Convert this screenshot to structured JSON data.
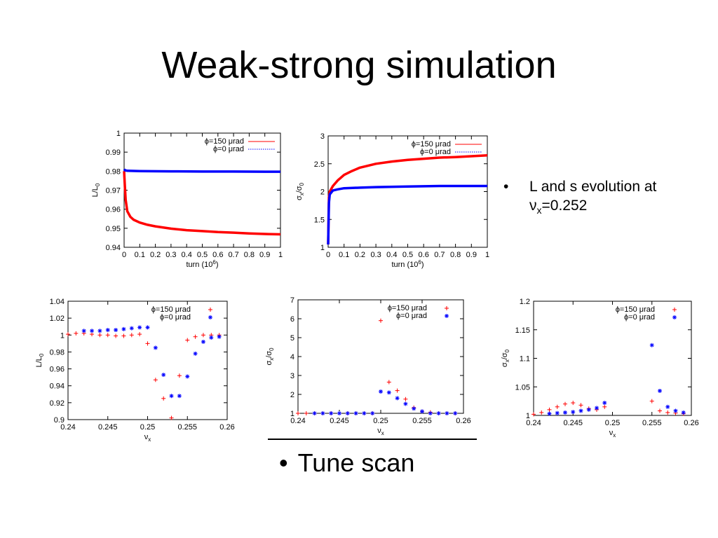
{
  "title": "Weak-strong simulation",
  "bullets": {
    "evolution_prefix": "L and s evolution at ",
    "evolution_nu": "ν",
    "evolution_sub": "x",
    "evolution_value": "=0.252",
    "tune_scan": "Tune scan"
  },
  "chart_data": [
    {
      "type": "line",
      "xlabel": "turn (10",
      "xlabel_sup": "6",
      "xlabel_end": ")",
      "ylabel": "L/L",
      "ylabel_sub": "0",
      "xlim": [
        0,
        1
      ],
      "ylim": [
        0.94,
        1
      ],
      "xticks": [
        "0",
        "0.1",
        "0.2",
        "0.3",
        "0.4",
        "0.5",
        "0.6",
        "0.7",
        "0.8",
        "0.9",
        "1"
      ],
      "yticks": [
        "0.94",
        "0.95",
        "0.96",
        "0.97",
        "0.98",
        "0.99",
        "1"
      ],
      "legend_placement": "top-right",
      "series": [
        {
          "name": "ϕ=150 μrad",
          "color": "#ff0000",
          "style": "solid",
          "x": [
            0,
            0.005,
            0.01,
            0.02,
            0.04,
            0.06,
            0.1,
            0.15,
            0.2,
            0.3,
            0.4,
            0.5,
            0.6,
            0.7,
            0.8,
            0.9,
            1.0
          ],
          "y": [
            0.98,
            0.972,
            0.965,
            0.959,
            0.956,
            0.9545,
            0.953,
            0.9518,
            0.951,
            0.9498,
            0.949,
            0.9485,
            0.948,
            0.9477,
            0.9473,
            0.947,
            0.9468
          ]
        },
        {
          "name": "ϕ=0 μrad",
          "color": "#0000ff",
          "style": "dotted",
          "x": [
            0,
            0.005,
            0.02,
            0.1,
            0.3,
            0.5,
            0.7,
            0.9,
            1.0
          ],
          "y": [
            0.981,
            0.9805,
            0.9802,
            0.98,
            0.9799,
            0.9798,
            0.9798,
            0.9797,
            0.9797
          ]
        }
      ]
    },
    {
      "type": "line",
      "xlabel": "turn (10",
      "xlabel_sup": "6",
      "xlabel_end": ")",
      "ylabel": "σ",
      "ylabel_sub1": "x",
      "ylabel_mid": "/σ",
      "ylabel_sub2": "0",
      "xlim": [
        0,
        1
      ],
      "ylim": [
        1,
        3
      ],
      "xticks": [
        "0",
        "0.1",
        "0.2",
        "0.3",
        "0.4",
        "0.5",
        "0.6",
        "0.7",
        "0.8",
        "0.9",
        "1"
      ],
      "yticks": [
        "1",
        "1.5",
        "2",
        "2.5",
        "3"
      ],
      "legend_placement": "top-right",
      "series": [
        {
          "name": "ϕ=150 μrad",
          "color": "#ff0000",
          "style": "solid",
          "x": [
            0,
            0.005,
            0.01,
            0.03,
            0.06,
            0.1,
            0.15,
            0.2,
            0.3,
            0.4,
            0.5,
            0.6,
            0.7,
            0.8,
            0.9,
            1.0
          ],
          "y": [
            1.05,
            1.9,
            2.0,
            2.1,
            2.2,
            2.3,
            2.37,
            2.43,
            2.5,
            2.54,
            2.57,
            2.59,
            2.61,
            2.62,
            2.635,
            2.65
          ]
        },
        {
          "name": "ϕ=0 μrad",
          "color": "#0000ff",
          "style": "dotted",
          "x": [
            0,
            0.005,
            0.01,
            0.03,
            0.06,
            0.1,
            0.2,
            0.3,
            0.5,
            0.7,
            0.9,
            1.0
          ],
          "y": [
            1.05,
            1.8,
            1.95,
            2.02,
            2.04,
            2.06,
            2.07,
            2.08,
            2.09,
            2.1,
            2.1,
            2.1
          ]
        }
      ]
    },
    {
      "type": "scatter",
      "xlabel": "ν",
      "xlabel_sub": "x",
      "ylabel": "L/L",
      "ylabel_sub": "0",
      "xlim": [
        0.24,
        0.26
      ],
      "ylim": [
        0.9,
        1.04
      ],
      "xticks": [
        "0.24",
        "0.245",
        "0.25",
        "0.255",
        "0.26"
      ],
      "yticks": [
        "0.9",
        "0.92",
        "0.94",
        "0.96",
        "0.98",
        "1",
        "1.02",
        "1.04"
      ],
      "legend_placement": "top-right",
      "series": [
        {
          "name": "ϕ=150 μrad",
          "color": "#ff0000",
          "marker": "plus",
          "x": [
            0.24,
            0.241,
            0.242,
            0.243,
            0.244,
            0.245,
            0.246,
            0.247,
            0.248,
            0.249,
            0.25,
            0.251,
            0.252,
            0.253,
            0.254,
            0.255,
            0.256,
            0.257,
            0.258,
            0.259
          ],
          "y": [
            1.001,
            1.002,
            1.002,
            1.001,
            1.0,
            1.0,
            0.999,
            0.999,
            1.0,
            1.001,
            0.99,
            0.947,
            0.925,
            0.902,
            0.952,
            0.994,
            0.998,
            1.0,
            1.0,
            1.0
          ]
        },
        {
          "name": "ϕ=0 μrad",
          "color": "#0000ff",
          "marker": "star",
          "x": [
            0.242,
            0.243,
            0.244,
            0.245,
            0.246,
            0.247,
            0.248,
            0.249,
            0.25,
            0.251,
            0.252,
            0.253,
            0.254,
            0.255,
            0.256,
            0.257,
            0.258,
            0.259
          ],
          "y": [
            1.005,
            1.005,
            1.005,
            1.006,
            1.006,
            1.007,
            1.008,
            1.009,
            1.009,
            0.985,
            0.953,
            0.928,
            0.928,
            0.951,
            0.978,
            0.992,
            0.997,
            0.998
          ]
        }
      ]
    },
    {
      "type": "scatter",
      "xlabel": "ν",
      "xlabel_sub": "x",
      "ylabel": "σ",
      "ylabel_sub1": "x",
      "ylabel_mid": "/σ",
      "ylabel_sub2": "0",
      "xlim": [
        0.24,
        0.26
      ],
      "ylim": [
        1,
        7
      ],
      "xticks": [
        "0.24",
        "0.245",
        "0.25",
        "0.255",
        "0.26"
      ],
      "yticks": [
        "1",
        "2",
        "3",
        "4",
        "5",
        "6",
        "7"
      ],
      "legend_placement": "top-right",
      "series": [
        {
          "name": "ϕ=150 μrad",
          "color": "#ff0000",
          "marker": "plus",
          "x": [
            0.24,
            0.241,
            0.242,
            0.243,
            0.244,
            0.245,
            0.246,
            0.247,
            0.248,
            0.249,
            0.25,
            0.251,
            0.252,
            0.253,
            0.254,
            0.255,
            0.256,
            0.257,
            0.258,
            0.259
          ],
          "y": [
            1.0,
            1.0,
            1.0,
            1.0,
            1.0,
            1.0,
            1.0,
            1.0,
            1.0,
            1.0,
            5.9,
            2.65,
            2.2,
            1.75,
            1.3,
            1.1,
            1.05,
            1.0,
            1.0,
            1.0
          ]
        },
        {
          "name": "ϕ=0 μrad",
          "color": "#0000ff",
          "marker": "star",
          "x": [
            0.242,
            0.243,
            0.244,
            0.245,
            0.246,
            0.247,
            0.248,
            0.249,
            0.25,
            0.251,
            0.252,
            0.253,
            0.254,
            0.255,
            0.256,
            0.257,
            0.258,
            0.259
          ],
          "y": [
            1.0,
            1.0,
            1.0,
            1.0,
            1.0,
            1.0,
            1.0,
            1.0,
            2.15,
            2.1,
            1.8,
            1.5,
            1.25,
            1.1,
            1.0,
            1.0,
            1.0,
            1.0
          ]
        }
      ]
    },
    {
      "type": "scatter",
      "xlabel": "ν",
      "xlabel_sub": "x",
      "ylabel": "σ",
      "ylabel_sub1": "x",
      "ylabel_mid": "/σ",
      "ylabel_sub2": "0",
      "xlim": [
        0.24,
        0.26
      ],
      "ylim": [
        1,
        1.2
      ],
      "xticks": [
        "0.24",
        "0.245",
        "0.25",
        "0.255",
        "0.26"
      ],
      "yticks": [
        "1",
        "1.05",
        "1.1",
        "1.15",
        "1.2"
      ],
      "legend_placement": "top-right",
      "series": [
        {
          "name": "ϕ=150 μrad",
          "color": "#ff0000",
          "marker": "plus",
          "x": [
            0.24,
            0.241,
            0.242,
            0.243,
            0.244,
            0.245,
            0.246,
            0.247,
            0.248,
            0.249,
            0.255,
            0.256,
            0.257,
            0.258,
            0.259
          ],
          "y": [
            1.002,
            1.005,
            1.01,
            1.015,
            1.02,
            1.022,
            1.018,
            1.012,
            1.01,
            1.015,
            1.025,
            1.008,
            1.005,
            1.004,
            1.003
          ]
        },
        {
          "name": "ϕ=0 μrad",
          "color": "#0000ff",
          "marker": "star",
          "x": [
            0.242,
            0.243,
            0.244,
            0.245,
            0.246,
            0.247,
            0.248,
            0.249,
            0.255,
            0.256,
            0.257,
            0.258,
            0.259
          ],
          "y": [
            1.003,
            1.004,
            1.005,
            1.006,
            1.008,
            1.01,
            1.013,
            1.022,
            1.123,
            1.043,
            1.015,
            1.008,
            1.005
          ]
        }
      ]
    }
  ]
}
